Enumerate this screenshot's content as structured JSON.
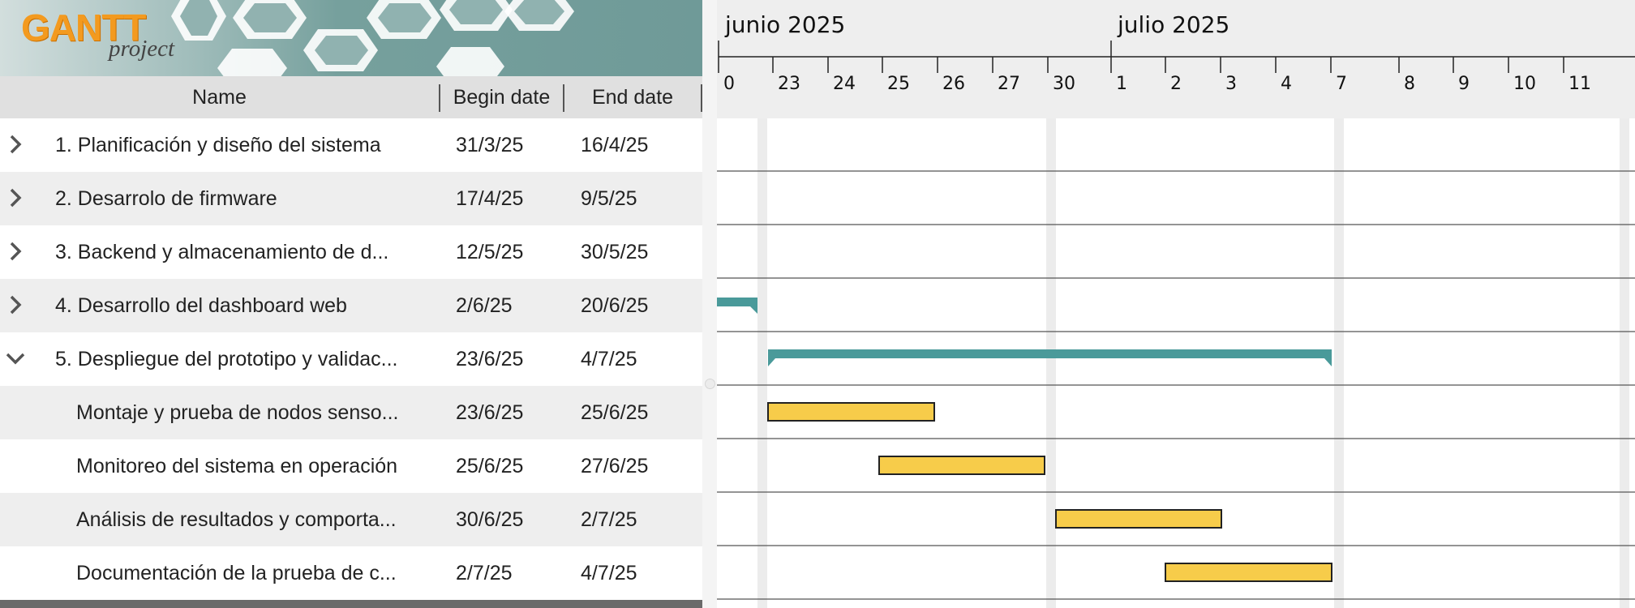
{
  "app": {
    "logo_main": "GANTT",
    "logo_sub": "project"
  },
  "columns": {
    "name": "Name",
    "begin": "Begin date",
    "end": "End date"
  },
  "tasks": [
    {
      "name": "1. Planificación y diseño del sistema",
      "begin": "31/3/25",
      "end": "16/4/25",
      "kind": "group",
      "expanded": false
    },
    {
      "name": "2. Desarrolo de firmware",
      "begin": "17/4/25",
      "end": "9/5/25",
      "kind": "group",
      "expanded": false
    },
    {
      "name": "3. Backend y almacenamiento de d...",
      "begin": "12/5/25",
      "end": "30/5/25",
      "kind": "group",
      "expanded": false
    },
    {
      "name": "4. Desarrollo del dashboard web",
      "begin": "2/6/25",
      "end": "20/6/25",
      "kind": "group",
      "expanded": false
    },
    {
      "name": "5. Despliegue del prototipo y validac...",
      "begin": "23/6/25",
      "end": "4/7/25",
      "kind": "group",
      "expanded": true
    },
    {
      "name": "Montaje y prueba de nodos senso...",
      "begin": "23/6/25",
      "end": "25/6/25",
      "kind": "task"
    },
    {
      "name": "Monitoreo del sistema en operación",
      "begin": "25/6/25",
      "end": "27/6/25",
      "kind": "task"
    },
    {
      "name": "Análisis de resultados y comporta...",
      "begin": "30/6/25",
      "end": "2/7/25",
      "kind": "task"
    },
    {
      "name": "Documentación de la prueba de c...",
      "begin": "2/7/25",
      "end": "4/7/25",
      "kind": "task"
    }
  ],
  "timeline": {
    "months": [
      "junio 2025",
      "julio 2025"
    ],
    "days": [
      "0",
      "23",
      "24",
      "25",
      "26",
      "27",
      "30",
      "1",
      "2",
      "3",
      "4",
      "7",
      "8",
      "9",
      "10",
      "11"
    ]
  },
  "colors": {
    "summary_bar": "#4a9a9a",
    "task_bar": "#f7cc4a",
    "task_border": "#222222",
    "weekend_shade": "#ececec",
    "header_bg": "#e0e0e0",
    "alt_row": "#eeeeee"
  }
}
